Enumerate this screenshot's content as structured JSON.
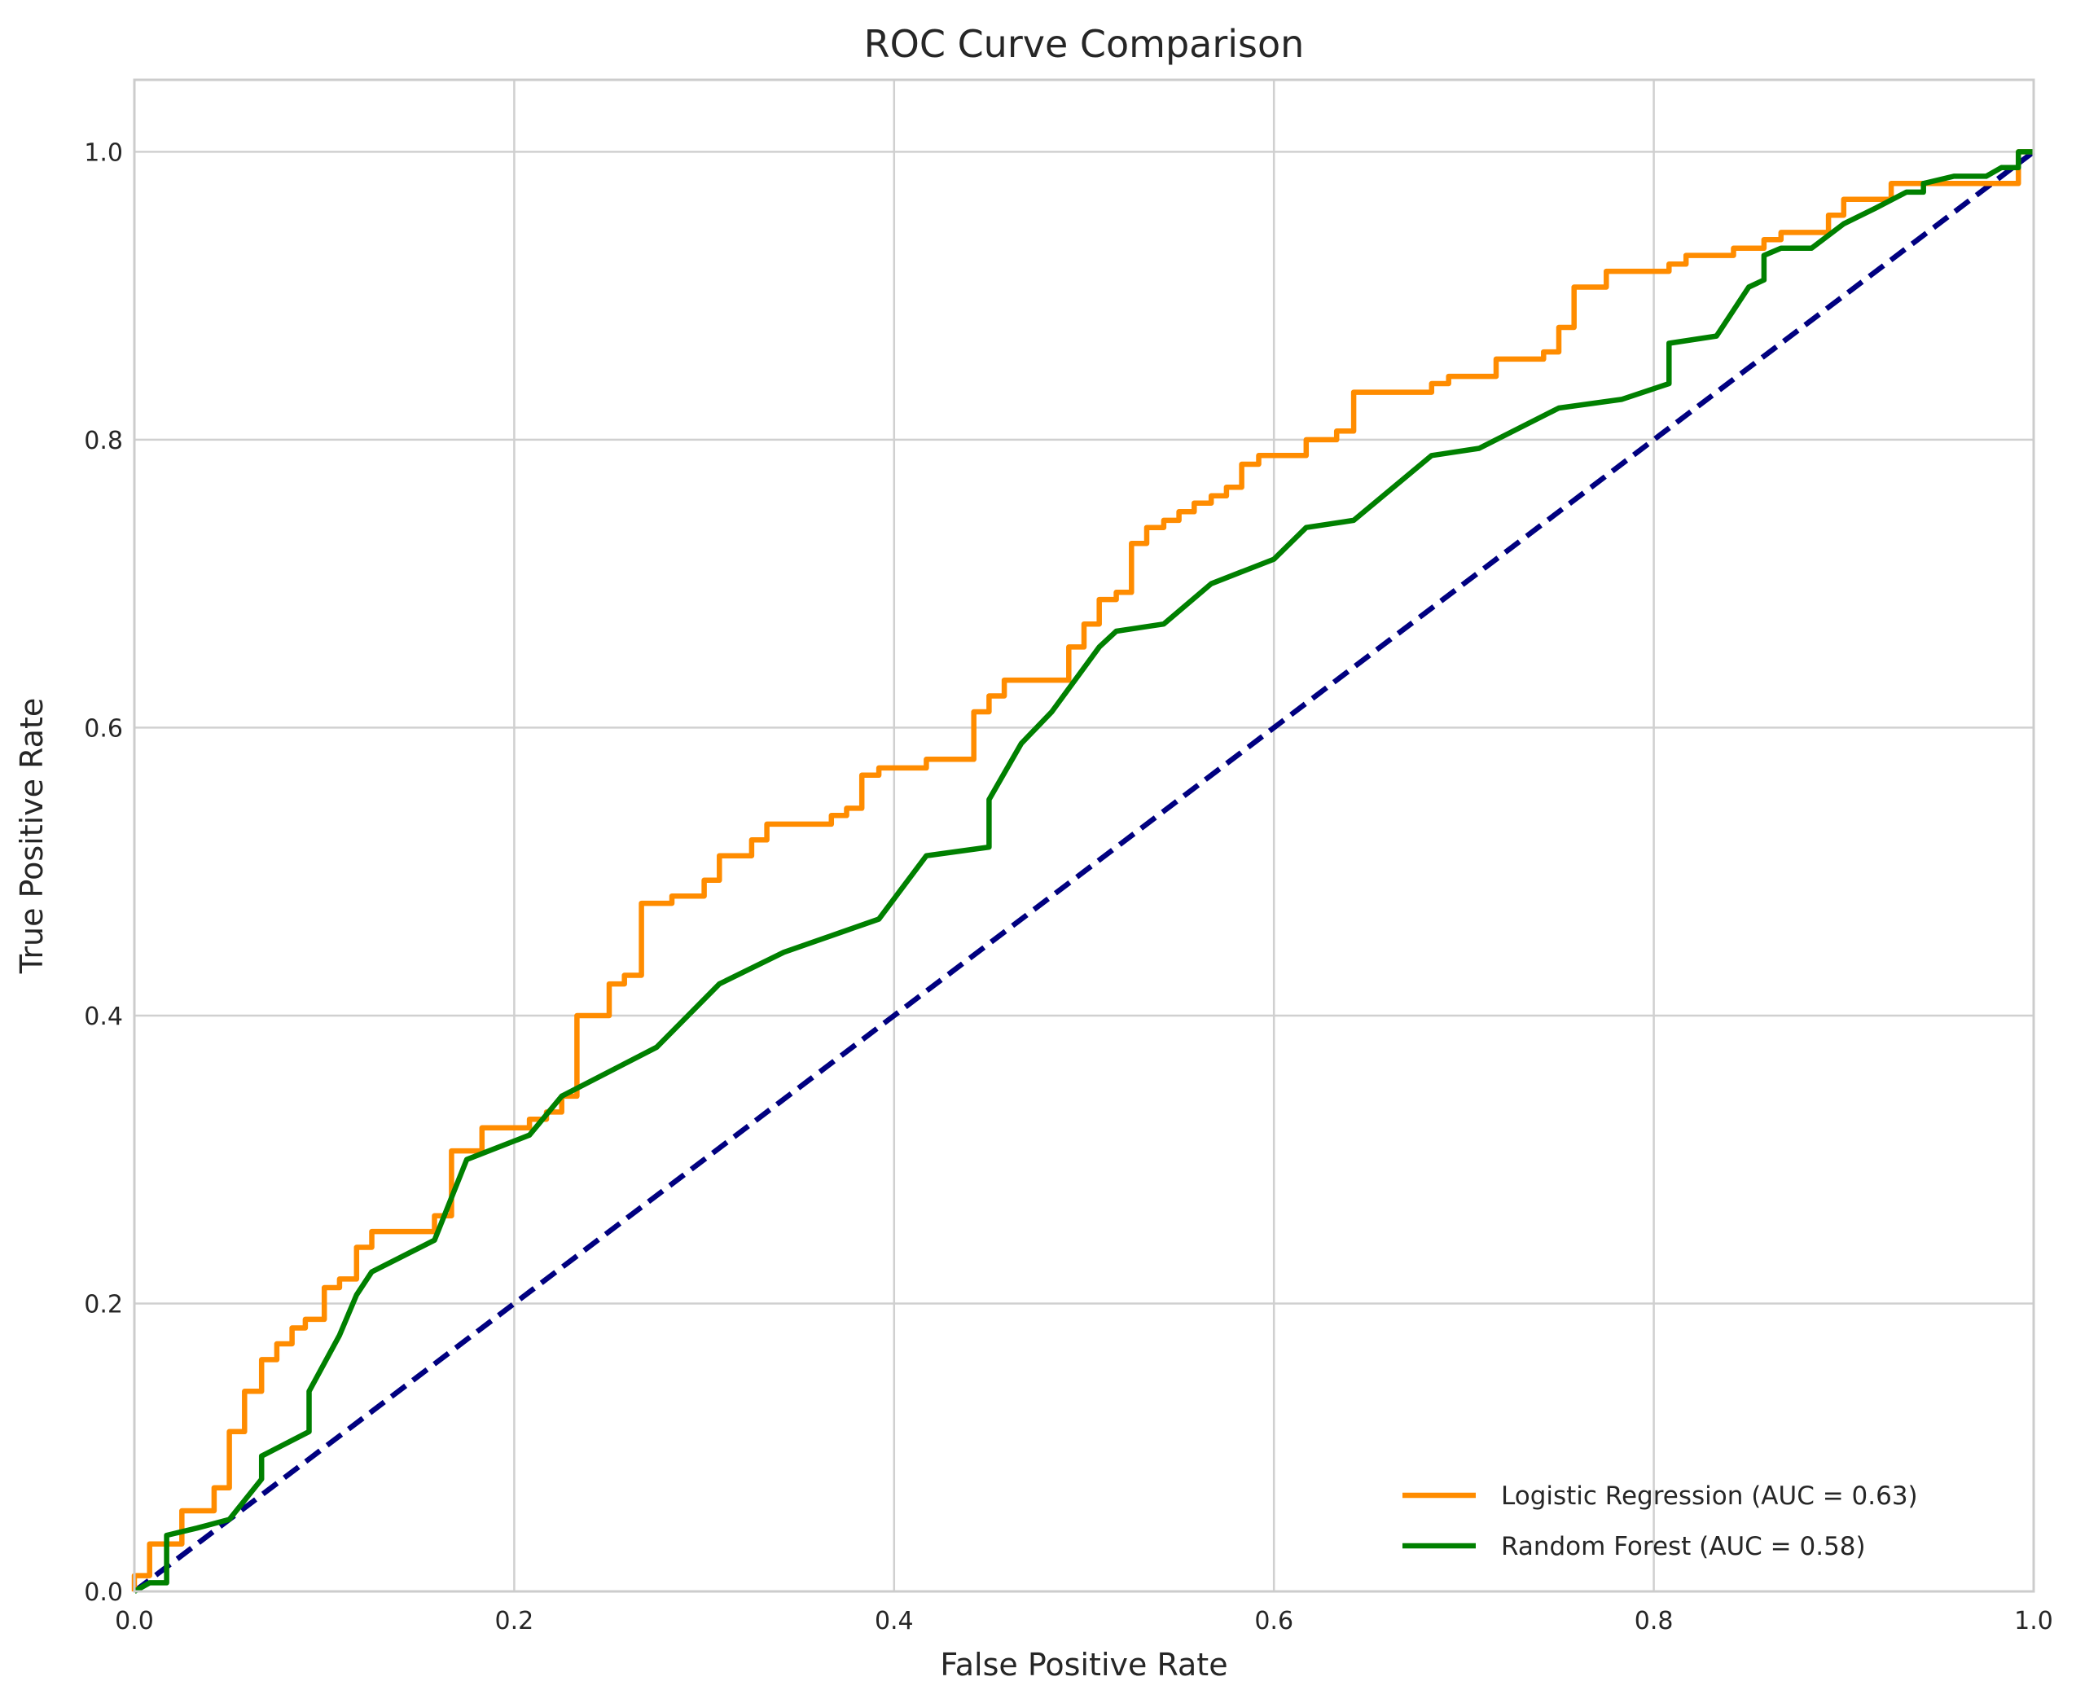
{
  "chart_data": {
    "type": "line",
    "title": "ROC Curve Comparison",
    "xlabel": "False Positive Rate",
    "ylabel": "True Positive Rate",
    "xlim": [
      0.0,
      1.0
    ],
    "ylim": [
      0.0,
      1.05
    ],
    "xticks": [
      "0.0",
      "0.2",
      "0.4",
      "0.6",
      "0.8",
      "1.0"
    ],
    "yticks": [
      "0.0",
      "0.2",
      "0.4",
      "0.6",
      "0.8",
      "1.0"
    ],
    "grid": true,
    "legend_position": "lower-right",
    "series": [
      {
        "name": "Logistic Regression (AUC = 0.63)",
        "color": "#ff8c00",
        "style": "solid",
        "points": [
          [
            0.0,
            0.0
          ],
          [
            0.0,
            0.011
          ],
          [
            0.008,
            0.011
          ],
          [
            0.008,
            0.033
          ],
          [
            0.025,
            0.033
          ],
          [
            0.025,
            0.056
          ],
          [
            0.042,
            0.056
          ],
          [
            0.042,
            0.072
          ],
          [
            0.05,
            0.072
          ],
          [
            0.05,
            0.111
          ],
          [
            0.058,
            0.111
          ],
          [
            0.058,
            0.139
          ],
          [
            0.067,
            0.139
          ],
          [
            0.067,
            0.161
          ],
          [
            0.075,
            0.161
          ],
          [
            0.075,
            0.172
          ],
          [
            0.083,
            0.172
          ],
          [
            0.083,
            0.183
          ],
          [
            0.09,
            0.183
          ],
          [
            0.09,
            0.189
          ],
          [
            0.1,
            0.189
          ],
          [
            0.1,
            0.211
          ],
          [
            0.108,
            0.211
          ],
          [
            0.108,
            0.217
          ],
          [
            0.117,
            0.217
          ],
          [
            0.117,
            0.239
          ],
          [
            0.125,
            0.239
          ],
          [
            0.125,
            0.25
          ],
          [
            0.158,
            0.25
          ],
          [
            0.158,
            0.261
          ],
          [
            0.167,
            0.261
          ],
          [
            0.167,
            0.306
          ],
          [
            0.183,
            0.306
          ],
          [
            0.183,
            0.322
          ],
          [
            0.208,
            0.322
          ],
          [
            0.208,
            0.328
          ],
          [
            0.217,
            0.328
          ],
          [
            0.217,
            0.333
          ],
          [
            0.225,
            0.333
          ],
          [
            0.225,
            0.344
          ],
          [
            0.233,
            0.344
          ],
          [
            0.233,
            0.4
          ],
          [
            0.25,
            0.4
          ],
          [
            0.25,
            0.422
          ],
          [
            0.258,
            0.422
          ],
          [
            0.258,
            0.428
          ],
          [
            0.267,
            0.428
          ],
          [
            0.267,
            0.478
          ],
          [
            0.283,
            0.478
          ],
          [
            0.283,
            0.483
          ],
          [
            0.3,
            0.483
          ],
          [
            0.3,
            0.494
          ],
          [
            0.308,
            0.494
          ],
          [
            0.308,
            0.511
          ],
          [
            0.325,
            0.511
          ],
          [
            0.325,
            0.522
          ],
          [
            0.333,
            0.522
          ],
          [
            0.333,
            0.533
          ],
          [
            0.367,
            0.533
          ],
          [
            0.367,
            0.539
          ],
          [
            0.375,
            0.539
          ],
          [
            0.375,
            0.544
          ],
          [
            0.383,
            0.544
          ],
          [
            0.383,
            0.567
          ],
          [
            0.392,
            0.567
          ],
          [
            0.392,
            0.572
          ],
          [
            0.417,
            0.572
          ],
          [
            0.417,
            0.578
          ],
          [
            0.442,
            0.578
          ],
          [
            0.442,
            0.611
          ],
          [
            0.45,
            0.611
          ],
          [
            0.45,
            0.622
          ],
          [
            0.458,
            0.622
          ],
          [
            0.458,
            0.633
          ],
          [
            0.492,
            0.633
          ],
          [
            0.492,
            0.656
          ],
          [
            0.5,
            0.656
          ],
          [
            0.5,
            0.672
          ],
          [
            0.508,
            0.672
          ],
          [
            0.508,
            0.689
          ],
          [
            0.517,
            0.689
          ],
          [
            0.517,
            0.694
          ],
          [
            0.525,
            0.694
          ],
          [
            0.525,
            0.728
          ],
          [
            0.533,
            0.728
          ],
          [
            0.533,
            0.739
          ],
          [
            0.542,
            0.739
          ],
          [
            0.542,
            0.744
          ],
          [
            0.55,
            0.744
          ],
          [
            0.55,
            0.75
          ],
          [
            0.558,
            0.75
          ],
          [
            0.558,
            0.756
          ],
          [
            0.567,
            0.756
          ],
          [
            0.567,
            0.761
          ],
          [
            0.575,
            0.761
          ],
          [
            0.575,
            0.767
          ],
          [
            0.583,
            0.767
          ],
          [
            0.583,
            0.783
          ],
          [
            0.592,
            0.783
          ],
          [
            0.592,
            0.789
          ],
          [
            0.617,
            0.789
          ],
          [
            0.617,
            0.8
          ],
          [
            0.633,
            0.8
          ],
          [
            0.633,
            0.806
          ],
          [
            0.642,
            0.806
          ],
          [
            0.642,
            0.833
          ],
          [
            0.683,
            0.833
          ],
          [
            0.683,
            0.839
          ],
          [
            0.692,
            0.839
          ],
          [
            0.692,
            0.844
          ],
          [
            0.717,
            0.844
          ],
          [
            0.717,
            0.856
          ],
          [
            0.742,
            0.856
          ],
          [
            0.742,
            0.861
          ],
          [
            0.75,
            0.861
          ],
          [
            0.75,
            0.878
          ],
          [
            0.758,
            0.878
          ],
          [
            0.758,
            0.906
          ],
          [
            0.775,
            0.906
          ],
          [
            0.775,
            0.917
          ],
          [
            0.808,
            0.917
          ],
          [
            0.808,
            0.922
          ],
          [
            0.817,
            0.922
          ],
          [
            0.817,
            0.928
          ],
          [
            0.842,
            0.928
          ],
          [
            0.842,
            0.933
          ],
          [
            0.858,
            0.933
          ],
          [
            0.858,
            0.939
          ],
          [
            0.867,
            0.939
          ],
          [
            0.867,
            0.944
          ],
          [
            0.892,
            0.944
          ],
          [
            0.892,
            0.956
          ],
          [
            0.9,
            0.956
          ],
          [
            0.9,
            0.967
          ],
          [
            0.925,
            0.967
          ],
          [
            0.925,
            0.978
          ],
          [
            0.992,
            0.978
          ],
          [
            0.992,
            1.0
          ],
          [
            1.0,
            1.0
          ]
        ]
      },
      {
        "name": "Random Forest (AUC = 0.58)",
        "color": "#008000",
        "style": "solid",
        "points": [
          [
            0.0,
            0.0
          ],
          [
            0.008,
            0.006
          ],
          [
            0.017,
            0.006
          ],
          [
            0.017,
            0.039
          ],
          [
            0.033,
            0.044
          ],
          [
            0.05,
            0.05
          ],
          [
            0.067,
            0.078
          ],
          [
            0.067,
            0.094
          ],
          [
            0.092,
            0.111
          ],
          [
            0.092,
            0.139
          ],
          [
            0.108,
            0.178
          ],
          [
            0.117,
            0.206
          ],
          [
            0.125,
            0.222
          ],
          [
            0.158,
            0.244
          ],
          [
            0.175,
            0.3
          ],
          [
            0.208,
            0.317
          ],
          [
            0.225,
            0.344
          ],
          [
            0.275,
            0.378
          ],
          [
            0.308,
            0.422
          ],
          [
            0.342,
            0.444
          ],
          [
            0.392,
            0.467
          ],
          [
            0.417,
            0.511
          ],
          [
            0.45,
            0.517
          ],
          [
            0.45,
            0.55
          ],
          [
            0.467,
            0.589
          ],
          [
            0.483,
            0.611
          ],
          [
            0.508,
            0.656
          ],
          [
            0.517,
            0.667
          ],
          [
            0.542,
            0.672
          ],
          [
            0.567,
            0.7
          ],
          [
            0.6,
            0.717
          ],
          [
            0.617,
            0.739
          ],
          [
            0.642,
            0.744
          ],
          [
            0.683,
            0.789
          ],
          [
            0.708,
            0.794
          ],
          [
            0.75,
            0.822
          ],
          [
            0.783,
            0.828
          ],
          [
            0.808,
            0.839
          ],
          [
            0.808,
            0.867
          ],
          [
            0.833,
            0.872
          ],
          [
            0.85,
            0.906
          ],
          [
            0.858,
            0.911
          ],
          [
            0.858,
            0.928
          ],
          [
            0.867,
            0.933
          ],
          [
            0.883,
            0.933
          ],
          [
            0.9,
            0.95
          ],
          [
            0.917,
            0.961
          ],
          [
            0.933,
            0.972
          ],
          [
            0.942,
            0.972
          ],
          [
            0.942,
            0.978
          ],
          [
            0.958,
            0.983
          ],
          [
            0.975,
            0.983
          ],
          [
            0.983,
            0.989
          ],
          [
            0.992,
            0.989
          ],
          [
            0.992,
            1.0
          ],
          [
            1.0,
            1.0
          ]
        ]
      },
      {
        "name": "",
        "color": "#000080",
        "style": "dashed",
        "points": [
          [
            0.0,
            0.0
          ],
          [
            1.0,
            1.0
          ]
        ]
      }
    ]
  }
}
